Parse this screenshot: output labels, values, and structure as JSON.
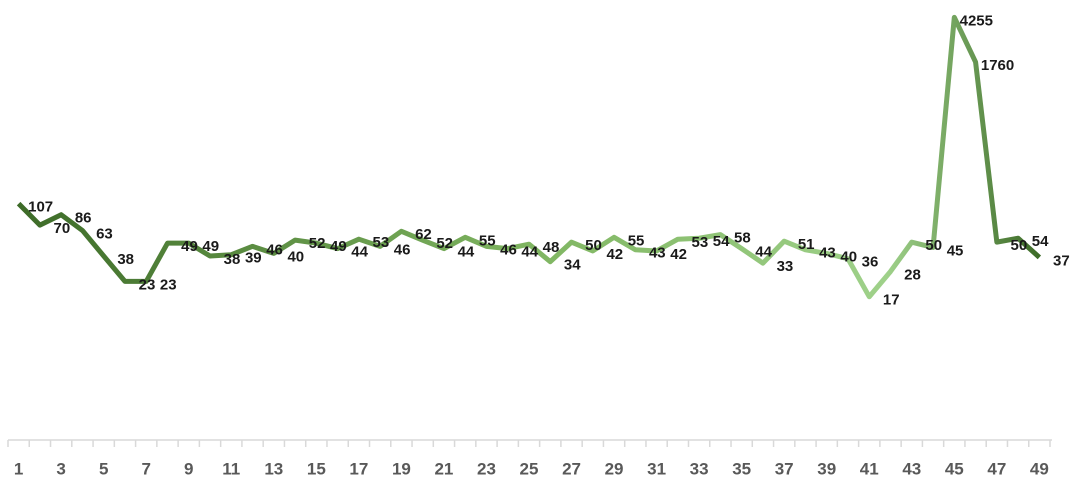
{
  "chart_data": {
    "type": "line",
    "log_scale": true,
    "color": "#4a7d32",
    "categories": [
      "1",
      null,
      "3",
      null,
      "5",
      null,
      "7",
      null,
      "9",
      null,
      "11",
      null,
      "13",
      null,
      "15",
      null,
      "17",
      null,
      "19",
      null,
      "21",
      null,
      "23",
      null,
      "25",
      null,
      "27",
      null,
      "29",
      null,
      "31",
      null,
      "33",
      null,
      "35",
      null,
      "37",
      null,
      "39",
      null,
      "41",
      null,
      "43",
      null,
      "45",
      null,
      "47",
      null,
      "49"
    ],
    "values": [
      107,
      70,
      86,
      63,
      38,
      23,
      23,
      49,
      49,
      38,
      39,
      46,
      40,
      52,
      49,
      44,
      53,
      46,
      62,
      52,
      44,
      55,
      46,
      44,
      48,
      34,
      50,
      42,
      55,
      43,
      42,
      53,
      54,
      58,
      44,
      33,
      51,
      43,
      40,
      36,
      17,
      28,
      50,
      45,
      4255,
      1760,
      50,
      54,
      37
    ],
    "ylim": [
      1,
      6000
    ]
  }
}
